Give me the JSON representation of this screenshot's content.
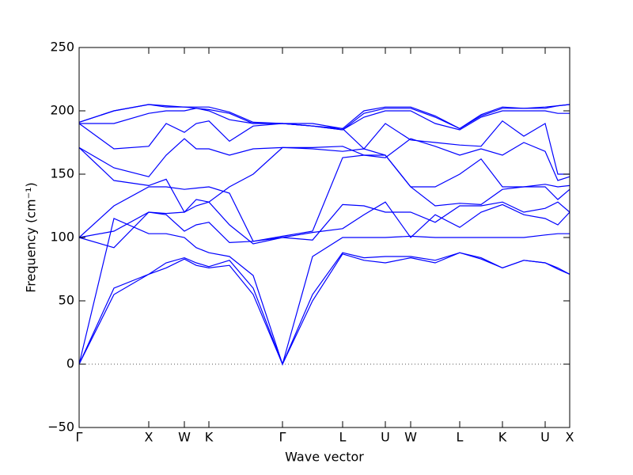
{
  "chart_data": {
    "type": "line",
    "xlabel": "Wave vector",
    "ylabel": "Frequency (cm⁻¹)",
    "color": "#0000ff",
    "xlim": [
      0,
      620
    ],
    "ylim": [
      -50,
      250
    ],
    "yticks": [
      {
        "value": -50,
        "label": "−50"
      },
      0,
      50,
      100,
      150,
      200,
      250
    ],
    "xticks": [
      {
        "value": 0,
        "label": "Γ"
      },
      {
        "value": 88,
        "label": "X"
      },
      {
        "value": 133,
        "label": "W"
      },
      {
        "value": 164,
        "label": "K"
      },
      {
        "value": 257,
        "label": "Γ"
      },
      {
        "value": 333,
        "label": "L"
      },
      {
        "value": 387,
        "label": "U"
      },
      {
        "value": 419,
        "label": "W"
      },
      {
        "value": 481,
        "label": "L"
      },
      {
        "value": 535,
        "label": "K"
      },
      {
        "value": 589,
        "label": "U"
      },
      {
        "value": 620,
        "label": "X"
      }
    ],
    "hlines": [
      0
    ],
    "x": [
      0,
      44,
      88,
      110,
      133,
      148,
      164,
      190,
      220,
      257,
      295,
      333,
      360,
      387,
      419,
      450,
      481,
      508,
      535,
      562,
      589,
      605,
      620
    ],
    "series": [
      {
        "values": [
          0,
          55,
          71,
          76,
          83,
          78,
          76,
          78,
          55,
          0,
          50,
          87,
          82,
          80,
          84,
          80,
          88,
          83,
          76,
          82,
          80,
          75,
          71
        ]
      },
      {
        "values": [
          0,
          60,
          71,
          80,
          84,
          80,
          77,
          82,
          60,
          0,
          55,
          88,
          84,
          85,
          85,
          82,
          88,
          84,
          76,
          82,
          80,
          76,
          71
        ]
      },
      {
        "values": [
          0,
          115,
          103,
          103,
          100,
          92,
          88,
          85,
          70,
          0,
          85,
          100,
          100,
          100,
          101,
          100,
          100,
          100,
          100,
          100,
          102,
          103,
          103
        ]
      },
      {
        "values": [
          100,
          92,
          120,
          118,
          105,
          110,
          112,
          96,
          97,
          100,
          104,
          107,
          118,
          128,
          100,
          118,
          108,
          120,
          126,
          118,
          115,
          110,
          120
        ]
      },
      {
        "values": [
          100,
          105,
          120,
          119,
          120,
          125,
          128,
          110,
          95,
          100,
          98,
          126,
          125,
          120,
          120,
          112,
          125,
          125,
          128,
          120,
          123,
          128,
          120
        ]
      },
      {
        "values": [
          100,
          125,
          140,
          140,
          138,
          139,
          140,
          135,
          97,
          101,
          105,
          163,
          165,
          165,
          140,
          125,
          127,
          126,
          138,
          140,
          142,
          140,
          141
        ]
      },
      {
        "values": [
          171,
          145,
          141,
          146,
          120,
          130,
          128,
          140,
          150,
          171,
          170,
          168,
          170,
          165,
          140,
          140,
          150,
          162,
          140,
          140,
          140,
          130,
          138
        ]
      },
      {
        "values": [
          171,
          155,
          148,
          165,
          178,
          170,
          170,
          165,
          170,
          171,
          171,
          172,
          165,
          163,
          178,
          172,
          165,
          170,
          165,
          175,
          168,
          145,
          148
        ]
      },
      {
        "values": [
          190,
          170,
          172,
          190,
          183,
          190,
          192,
          176,
          188,
          190,
          190,
          186,
          170,
          190,
          177,
          175,
          173,
          172,
          192,
          180,
          190,
          150,
          150
        ]
      },
      {
        "values": [
          190,
          190,
          198,
          200,
          200,
          202,
          200,
          193,
          190,
          190,
          188,
          185,
          195,
          200,
          200,
          190,
          185,
          195,
          200,
          200,
          200,
          198,
          198
        ]
      },
      {
        "values": [
          191,
          200,
          205,
          203,
          203,
          202,
          201,
          198,
          190,
          190,
          188,
          185,
          198,
          202,
          202,
          195,
          186,
          196,
          202,
          202,
          202,
          204,
          205
        ]
      },
      {
        "values": [
          191,
          200,
          205,
          204,
          203,
          203,
          203,
          199,
          191,
          190,
          188,
          186,
          200,
          203,
          203,
          196,
          186,
          197,
          203,
          202,
          203,
          204,
          205
        ]
      }
    ]
  }
}
